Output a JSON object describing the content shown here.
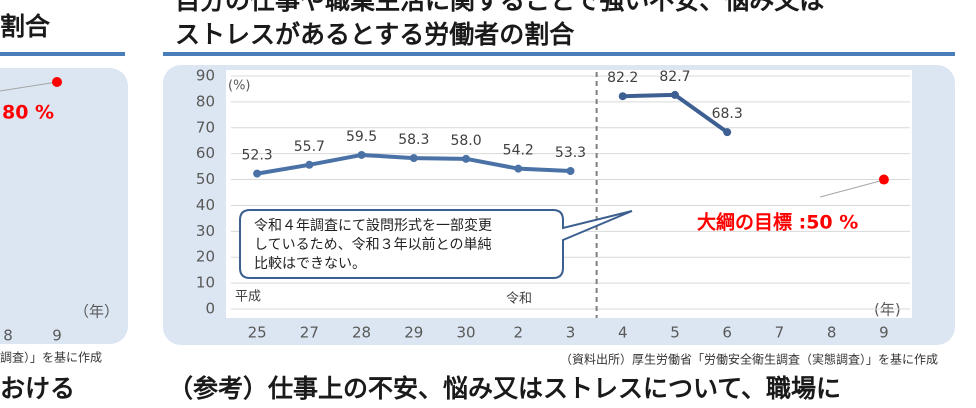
{
  "header": {
    "title_lines": [
      "自分の仕事や職業生活に関することで強い不安、悩み又は",
      "ストレスがあるとする労働者の割合"
    ]
  },
  "left_panel": {
    "title": "割合",
    "target": {
      "value": 80,
      "label": "80 %"
    },
    "x_unit": "（年）",
    "x_labels": [
      "8",
      "9"
    ],
    "source": "調査）」を基に作成",
    "footer": "おける"
  },
  "chart_data": {
    "type": "line",
    "categories": [
      "25",
      "27",
      "28",
      "29",
      "30",
      "2",
      "3",
      "4",
      "5",
      "6",
      "7",
      "8",
      "9"
    ],
    "series": [
      {
        "color": "#4a72a6",
        "values": [
          52.3,
          55.7,
          59.5,
          58.3,
          58.0,
          54.2,
          53.3,
          null,
          null,
          null,
          null,
          null,
          null
        ],
        "value_labels": [
          "52.3",
          "55.7",
          "59.5",
          "58.3",
          "58.0",
          "54.2",
          "53.3",
          null,
          null,
          null,
          null,
          null,
          null
        ]
      },
      {
        "color": "#3d5f92",
        "values": [
          null,
          null,
          null,
          null,
          null,
          null,
          null,
          82.2,
          82.7,
          68.3,
          null,
          null,
          null
        ],
        "value_labels": [
          null,
          null,
          null,
          null,
          null,
          null,
          null,
          "82.2",
          "82.7",
          "68.3",
          null,
          null,
          null
        ]
      },
      {
        "color": "#ff0000",
        "values": [
          null,
          null,
          null,
          null,
          null,
          null,
          null,
          null,
          null,
          null,
          null,
          null,
          50
        ]
      }
    ],
    "ylim": [
      0,
      90
    ],
    "yticks": [
      0,
      10,
      20,
      30,
      40,
      50,
      60,
      70,
      80,
      90
    ],
    "grid": true,
    "y_unit": "(%)",
    "x_unit": "(年)",
    "era_labels": [
      "平成",
      "令和"
    ],
    "note": [
      "令和４年調査にて設問形式を一部変更",
      "しているため、令和３年以前との単純",
      "比較はできない。"
    ],
    "target_label": "大綱の目標 :50 %"
  },
  "source": "（資料出所）厚生労働省「労働安全衛生調査（実態調査）」を基に作成",
  "footer": "（参考）仕事上の不安、悩み又はストレスについて、職場に"
}
